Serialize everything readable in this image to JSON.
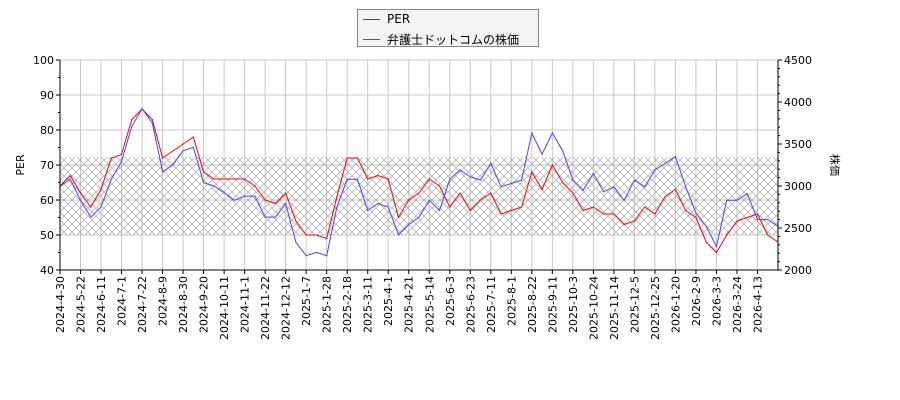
{
  "chart_data": {
    "type": "line",
    "title": "",
    "x_tick_labels": [
      "2024-4-30",
      "2024-5-22",
      "2024-6-11",
      "2024-7-1",
      "2024-7-22",
      "2024-8-9",
      "2024-8-30",
      "2024-9-20",
      "2024-10-11",
      "2024-11-1",
      "2024-11-22",
      "2024-12-12",
      "2025-1-7",
      "2025-1-28",
      "2025-2-18",
      "2025-3-11",
      "2025-4-1",
      "2025-4-21",
      "2025-5-14",
      "2025-6-3",
      "2025-6-23",
      "2025-7-11",
      "2025-8-1",
      "2025-8-22",
      "2025-9-11",
      "2025-10-3",
      "2025-10-24",
      "2025-11-14",
      "2025-12-5",
      "2025-12-25",
      "2026-1-20",
      "2026-2-9",
      "2026-3-3",
      "2026-3-24",
      "2026-4-13"
    ],
    "x": [
      "2024-4-30",
      "2024-5-10",
      "2024-5-22",
      "2024-6-1",
      "2024-6-11",
      "2024-6-21",
      "2024-7-1",
      "2024-7-11",
      "2024-7-22",
      "2024-7-31",
      "2024-8-9",
      "2024-8-20",
      "2024-8-30",
      "2024-9-10",
      "2024-9-20",
      "2024-10-1",
      "2024-10-11",
      "2024-10-22",
      "2024-11-1",
      "2024-11-12",
      "2024-11-22",
      "2024-12-2",
      "2024-12-12",
      "2024-12-25",
      "2025-1-7",
      "2025-1-17",
      "2025-1-28",
      "2025-2-7",
      "2025-2-18",
      "2025-2-28",
      "2025-3-11",
      "2025-3-21",
      "2025-4-1",
      "2025-4-11",
      "2025-4-21",
      "2025-5-2",
      "2025-5-14",
      "2025-5-23",
      "2025-6-3",
      "2025-6-13",
      "2025-6-23",
      "2025-7-2",
      "2025-7-11",
      "2025-7-22",
      "2025-8-1",
      "2025-8-11",
      "2025-8-22",
      "2025-9-1",
      "2025-9-11",
      "2025-9-22",
      "2025-10-3",
      "2025-10-14",
      "2025-10-24",
      "2025-11-4",
      "2025-11-14",
      "2025-11-25",
      "2025-12-5",
      "2025-12-15",
      "2025-12-25",
      "2026-1-8",
      "2026-1-20",
      "2026-1-30",
      "2026-2-9",
      "2026-2-19",
      "2026-3-3",
      "2026-3-13",
      "2026-3-24",
      "2026-4-3",
      "2026-4-13",
      "2026-4-22",
      "2026-4-30"
    ],
    "ylabel": "PER",
    "ylabel_right": "株価",
    "ylim": [
      40,
      100
    ],
    "ylim_right": [
      2000,
      4500
    ],
    "y_ticks": [
      "40",
      "50",
      "60",
      "70",
      "80",
      "90",
      "100"
    ],
    "y_ticks_right": [
      "2000",
      "2500",
      "3000",
      "3500",
      "4000",
      "4500"
    ],
    "band": {
      "axis": "left",
      "from": 50,
      "to": 72.3,
      "style": "crosshatch"
    },
    "grid": true,
    "legend_position": "top-center",
    "series": [
      {
        "name": "PER",
        "axis": "left",
        "color": "#ff0000",
        "values": [
          64,
          67,
          62,
          58,
          63,
          72,
          73,
          83,
          86,
          83,
          72,
          74,
          76,
          78,
          68,
          66,
          66,
          66,
          66,
          64,
          60,
          59,
          62,
          54,
          50,
          50,
          49,
          61,
          72,
          72,
          66,
          67,
          66,
          55,
          60,
          62,
          66,
          64,
          58,
          62,
          57,
          60,
          62,
          56,
          57,
          58,
          68,
          63,
          70,
          65,
          62,
          57,
          58,
          56,
          56,
          53,
          54,
          58,
          56,
          61,
          63,
          57,
          55,
          48,
          45,
          50,
          54,
          55,
          56,
          50,
          48
        ]
      },
      {
        "name": "弁護士ドットコムの株価",
        "axis": "right",
        "color": "#4444ff",
        "values": [
          3000,
          3080,
          2830,
          2630,
          2750,
          3080,
          3290,
          3710,
          3920,
          3750,
          3170,
          3250,
          3420,
          3460,
          3040,
          3000,
          2920,
          2830,
          2880,
          2880,
          2630,
          2630,
          2790,
          2330,
          2170,
          2210,
          2170,
          2750,
          3080,
          3080,
          2710,
          2790,
          2750,
          2420,
          2540,
          2630,
          2830,
          2710,
          3080,
          3190,
          3110,
          3070,
          3270,
          2990,
          3030,
          3070,
          3630,
          3380,
          3630,
          3420,
          3070,
          2950,
          3150,
          2930,
          2990,
          2830,
          3070,
          2990,
          3190,
          3270,
          3350,
          2990,
          2680,
          2520,
          2280,
          2830,
          2830,
          2910,
          2600,
          2600,
          2520
        ]
      }
    ]
  }
}
